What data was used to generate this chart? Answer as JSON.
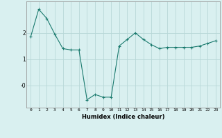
{
  "x": [
    0,
    1,
    2,
    3,
    4,
    5,
    6,
    7,
    8,
    9,
    10,
    11,
    12,
    13,
    14,
    15,
    16,
    17,
    18,
    19,
    20,
    21,
    22,
    23
  ],
  "y": [
    1.85,
    2.9,
    2.55,
    1.95,
    1.4,
    1.35,
    1.35,
    -0.55,
    -0.35,
    -0.45,
    -0.45,
    1.5,
    1.75,
    2.0,
    1.75,
    1.55,
    1.4,
    1.45,
    1.45,
    1.45,
    1.45,
    1.5,
    1.6,
    1.7
  ],
  "line_color": "#1a7a6e",
  "marker": "+",
  "marker_size": 3,
  "bg_color": "#d9f0f0",
  "grid_color": "#b8d8d8",
  "xlabel": "Humidex (Indice chaleur)",
  "xlim": [
    -0.5,
    23.5
  ],
  "ylim": [
    -0.85,
    3.2
  ],
  "ytick_vals": [
    0,
    1,
    2
  ],
  "ytick_labels": [
    "-0",
    "1",
    "2"
  ],
  "xticks": [
    0,
    1,
    2,
    3,
    4,
    5,
    6,
    7,
    8,
    9,
    10,
    11,
    12,
    13,
    14,
    15,
    16,
    17,
    18,
    19,
    20,
    21,
    22,
    23
  ],
  "xtick_labels": [
    "0",
    "1",
    "2",
    "3",
    "4",
    "5",
    "6",
    "7",
    "8",
    "9",
    "10",
    "11",
    "12",
    "13",
    "14",
    "15",
    "16",
    "17",
    "18",
    "19",
    "20",
    "21",
    "22",
    "23"
  ]
}
